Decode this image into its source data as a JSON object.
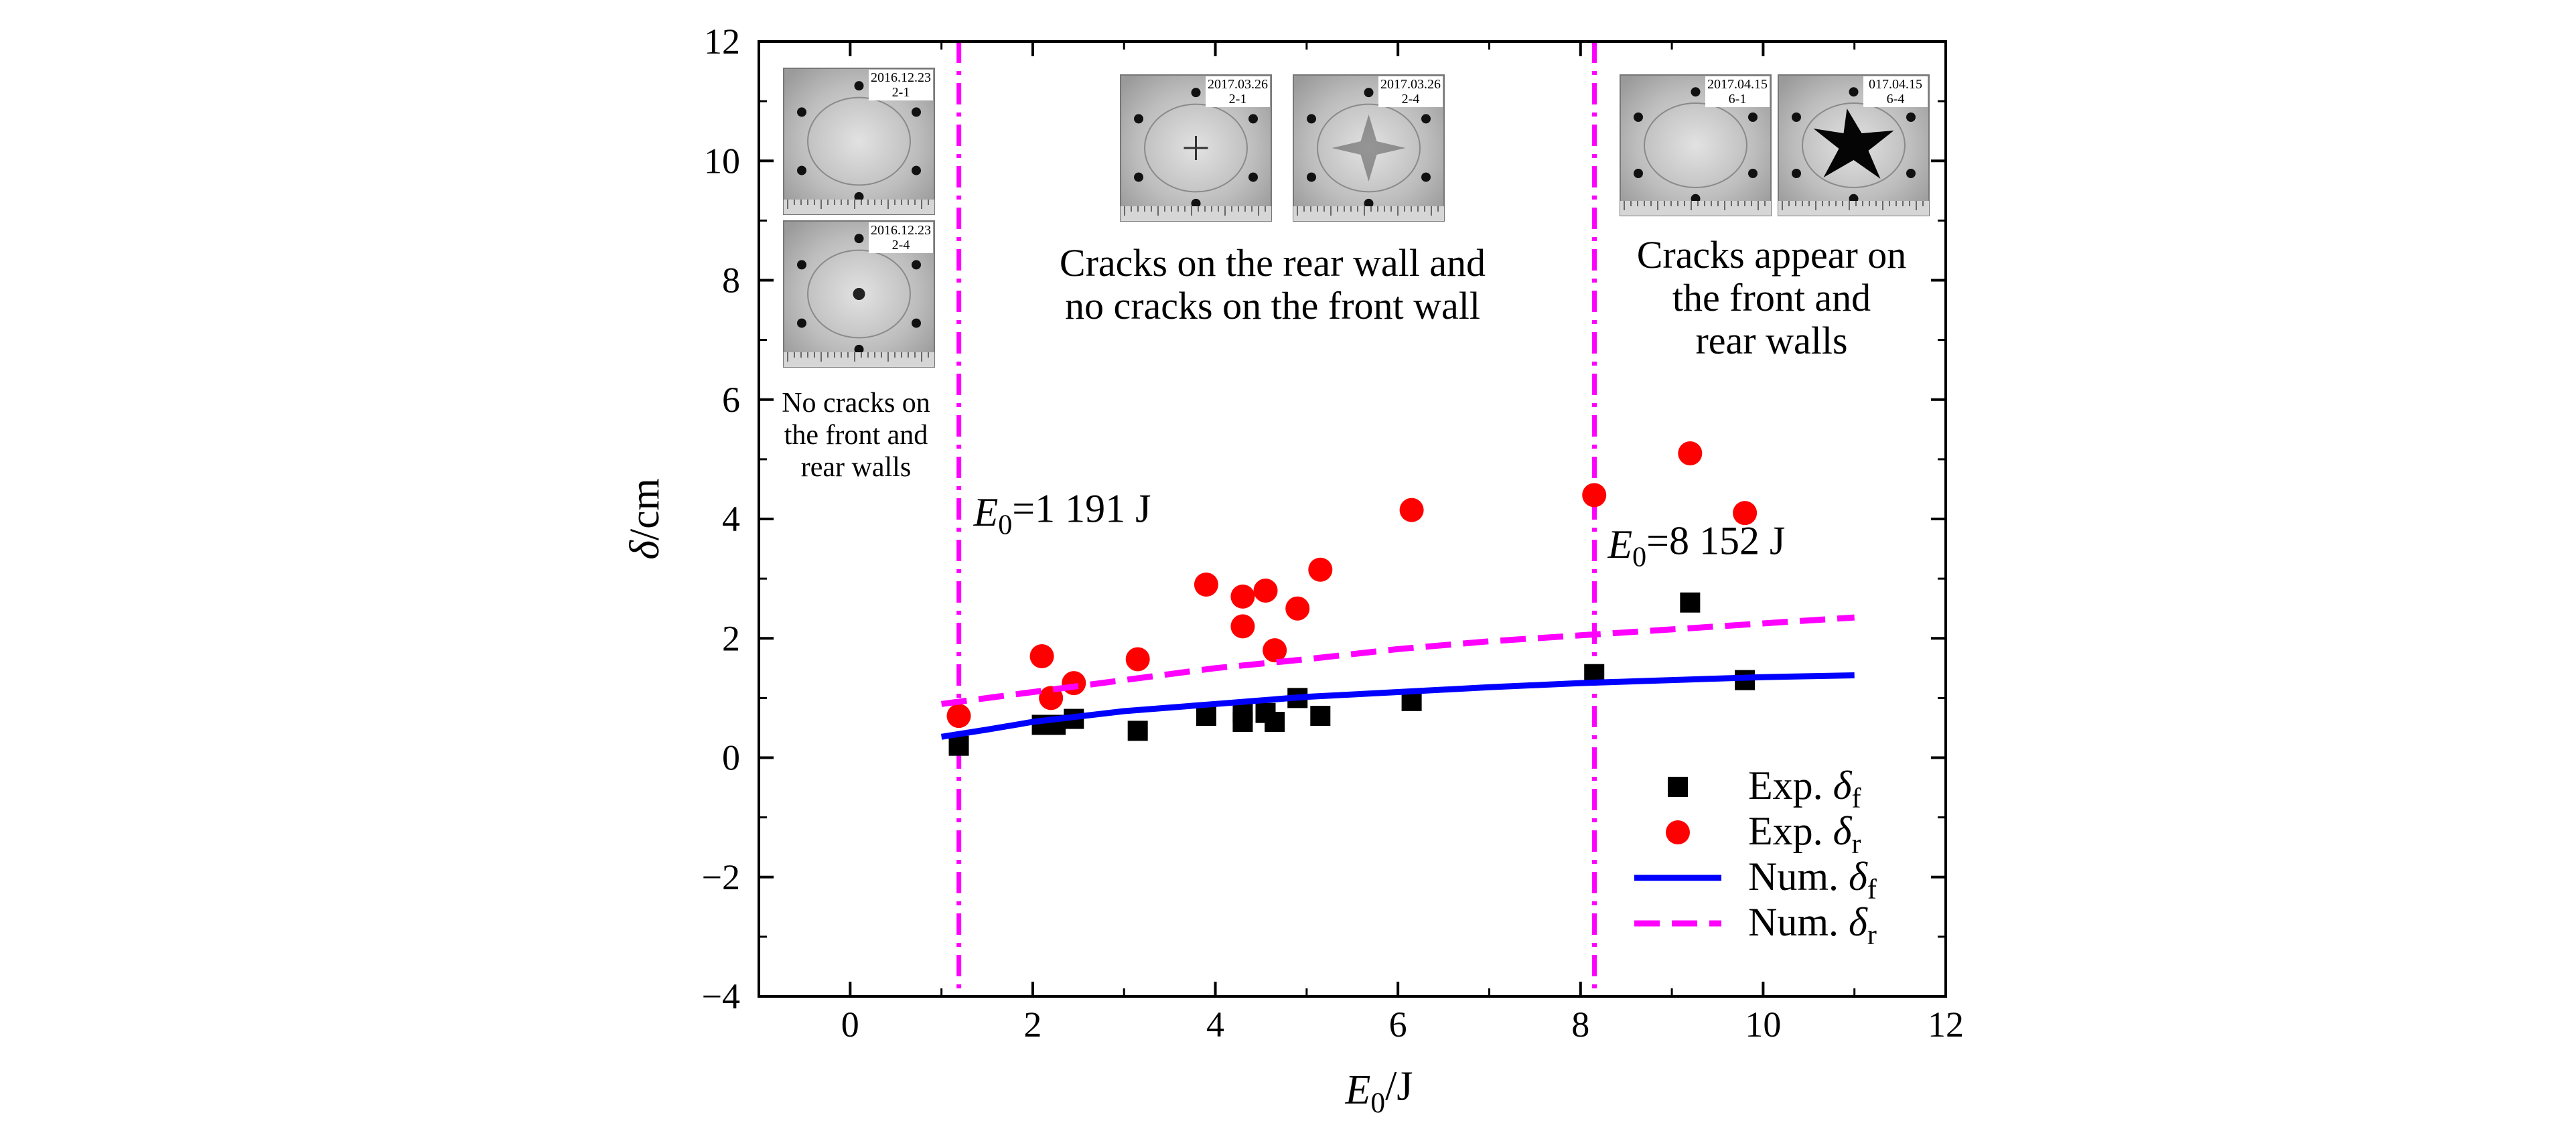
{
  "chart_data": {
    "type": "scatter",
    "title": "",
    "xlabel": "E0/J",
    "ylabel": "δ/cm",
    "xlim": [
      -1,
      12
    ],
    "ylim": [
      -4,
      12
    ],
    "xticks": [
      0,
      2,
      4,
      6,
      8,
      10,
      12
    ],
    "yticks": [
      -4,
      -2,
      0,
      2,
      4,
      6,
      8,
      10,
      12
    ],
    "grid": false,
    "legend_position": "bottom-right",
    "series": [
      {
        "name": "Exp. δf",
        "kind": "scatter",
        "marker": "square",
        "color": "#000000",
        "points": [
          [
            1.19,
            0.2
          ],
          [
            2.1,
            0.55
          ],
          [
            2.25,
            0.55
          ],
          [
            2.45,
            0.65
          ],
          [
            3.15,
            0.45
          ],
          [
            3.9,
            0.7
          ],
          [
            4.3,
            0.6
          ],
          [
            4.3,
            0.75
          ],
          [
            4.55,
            0.75
          ],
          [
            4.65,
            0.6
          ],
          [
            4.9,
            1.0
          ],
          [
            5.15,
            0.7
          ],
          [
            6.15,
            0.95
          ],
          [
            8.15,
            1.4
          ],
          [
            9.2,
            2.6
          ],
          [
            9.8,
            1.3
          ]
        ]
      },
      {
        "name": "Exp. δr",
        "kind": "scatter",
        "marker": "circle",
        "color": "#ff0000",
        "points": [
          [
            1.19,
            0.7
          ],
          [
            2.1,
            1.7
          ],
          [
            2.2,
            1.0
          ],
          [
            2.45,
            1.25
          ],
          [
            3.15,
            1.65
          ],
          [
            3.9,
            2.9
          ],
          [
            4.3,
            2.7
          ],
          [
            4.3,
            2.2
          ],
          [
            4.55,
            2.8
          ],
          [
            4.65,
            1.8
          ],
          [
            4.9,
            2.5
          ],
          [
            5.15,
            3.15
          ],
          [
            6.15,
            4.15
          ],
          [
            8.15,
            4.4
          ],
          [
            9.2,
            5.1
          ],
          [
            9.8,
            4.1
          ]
        ]
      },
      {
        "name": "Num. δf",
        "kind": "line",
        "style": "solid",
        "color": "#0000ff",
        "points": [
          [
            1.0,
            0.35
          ],
          [
            1.5,
            0.47
          ],
          [
            2.0,
            0.6
          ],
          [
            3.0,
            0.78
          ],
          [
            4.0,
            0.9
          ],
          [
            5.0,
            1.02
          ],
          [
            6.0,
            1.1
          ],
          [
            7.0,
            1.18
          ],
          [
            8.0,
            1.25
          ],
          [
            9.0,
            1.3
          ],
          [
            10.0,
            1.35
          ],
          [
            11.0,
            1.38
          ]
        ]
      },
      {
        "name": "Num. δr",
        "kind": "line",
        "style": "dashed",
        "color": "#ff00ff",
        "points": [
          [
            1.0,
            0.9
          ],
          [
            2.0,
            1.1
          ],
          [
            3.0,
            1.3
          ],
          [
            4.0,
            1.5
          ],
          [
            5.0,
            1.65
          ],
          [
            6.0,
            1.82
          ],
          [
            7.0,
            1.95
          ],
          [
            8.0,
            2.05
          ],
          [
            9.0,
            2.15
          ],
          [
            10.0,
            2.25
          ],
          [
            11.0,
            2.35
          ]
        ]
      }
    ],
    "thresholds": [
      {
        "x": 1.191,
        "color": "#ff00ff",
        "label": "E0=1 191 J"
      },
      {
        "x": 8.152,
        "color": "#ff00ff",
        "label": "E0=8 152 J"
      }
    ],
    "annotations": [
      {
        "text_lines": [
          "No cracks on",
          "the front and",
          "rear walls"
        ]
      },
      {
        "text_lines": [
          "Cracks on the rear wall and",
          "no cracks on the front wall"
        ]
      },
      {
        "text_lines": [
          "Cracks appear on",
          "the front and",
          "rear walls"
        ]
      }
    ],
    "photo_labels": [
      {
        "date": "2016.12.23",
        "id": "2-1"
      },
      {
        "date": "2016.12.23",
        "id": "2-4"
      },
      {
        "date": "2017.03.26",
        "id": "2-1"
      },
      {
        "date": "2017.03.26",
        "id": "2-4"
      },
      {
        "date": "2017.04.15",
        "id": "6-1"
      },
      {
        "date": "017.04.15",
        "id": "6-4"
      }
    ]
  }
}
